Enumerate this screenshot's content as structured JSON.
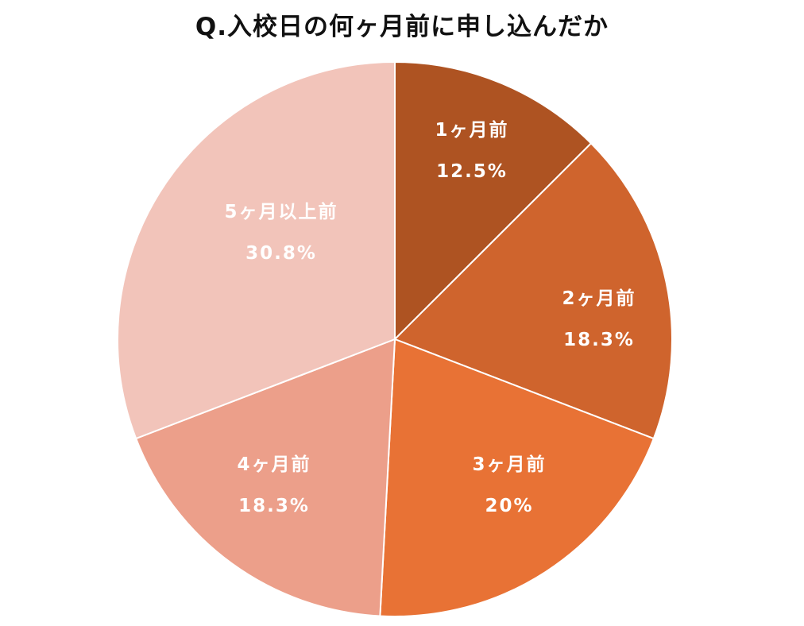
{
  "chart_data": {
    "type": "pie",
    "title": "Q.入校日の何ヶ月前に申し込んだか",
    "categories": [
      "1ヶ月前",
      "2ヶ月前",
      "3ヶ月前",
      "4ヶ月前",
      "5ヶ月以上前"
    ],
    "values": [
      12.5,
      18.3,
      20.0,
      18.3,
      30.8
    ],
    "value_labels": [
      "12.5%",
      "18.3%",
      "20%",
      "18.3%",
      "30.8%"
    ],
    "colors": [
      "#AE5322",
      "#CF642D",
      "#E87235",
      "#EC9F8A",
      "#F2C4BA"
    ],
    "start_angle": "12 o'clock",
    "direction": "clockwise",
    "legend": "none",
    "slice_border_color": "#ffffff"
  },
  "slices": [
    {
      "label": "1ヶ月前",
      "percent": "12.5%"
    },
    {
      "label": "2ヶ月前",
      "percent": "18.3%"
    },
    {
      "label": "3ヶ月前",
      "percent": "20%"
    },
    {
      "label": "4ヶ月前",
      "percent": "18.3%"
    },
    {
      "label": "5ヶ月以上前",
      "percent": "30.8%"
    }
  ]
}
